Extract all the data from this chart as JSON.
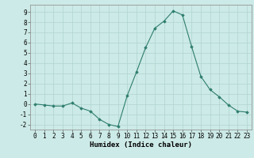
{
  "x": [
    0,
    1,
    2,
    3,
    4,
    5,
    6,
    7,
    8,
    9,
    10,
    11,
    12,
    13,
    14,
    15,
    16,
    17,
    18,
    19,
    20,
    21,
    22,
    23
  ],
  "y": [
    0,
    -0.1,
    -0.2,
    -0.2,
    0.1,
    -0.4,
    -0.7,
    -1.5,
    -2.0,
    -2.2,
    0.8,
    3.1,
    5.5,
    7.4,
    8.1,
    9.1,
    8.7,
    5.6,
    2.7,
    1.4,
    0.7,
    -0.1,
    -0.7,
    -0.8
  ],
  "line_color": "#2e7d6e",
  "marker": "D",
  "markersize": 1.8,
  "linewidth": 0.8,
  "bg_color": "#cceae7",
  "grid_color": "#b0d4d0",
  "xlabel": "Humidex (Indice chaleur)",
  "ylim": [
    -2.5,
    9.7
  ],
  "xlim": [
    -0.5,
    23.5
  ],
  "yticks": [
    -2,
    -1,
    0,
    1,
    2,
    3,
    4,
    5,
    6,
    7,
    8,
    9
  ],
  "xticks": [
    0,
    1,
    2,
    3,
    4,
    5,
    6,
    7,
    8,
    9,
    10,
    11,
    12,
    13,
    14,
    15,
    16,
    17,
    18,
    19,
    20,
    21,
    22,
    23
  ],
  "tick_fontsize": 5.5,
  "xlabel_fontsize": 6.5,
  "xlabel_fontweight": "bold"
}
